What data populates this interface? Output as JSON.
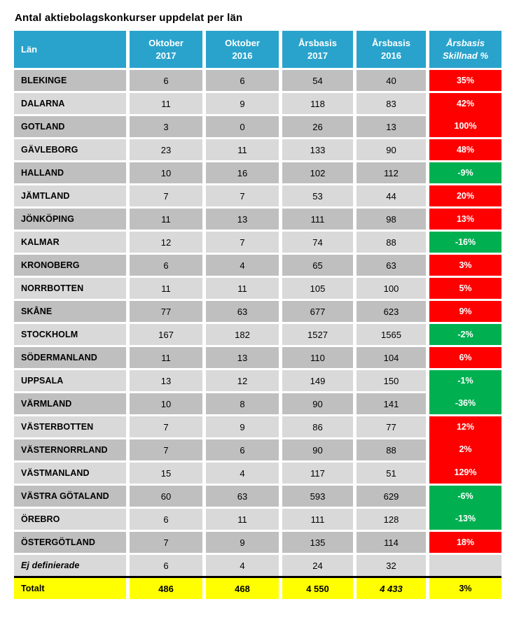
{
  "page_title": "Antal aktiebolagskonkurser uppdelat per län",
  "colors": {
    "header_bg": "#29A3CC",
    "row_dark": "#BFBFBF",
    "row_light": "#D9D9D9",
    "increase_red": "#FF0000",
    "decrease_green": "#00B050",
    "total_row_yellow": "#FFFF00",
    "divider_black": "#000000"
  },
  "table": {
    "header": [
      {
        "line1": "Län",
        "line2": ""
      },
      {
        "line1": "Oktober",
        "line2": "2017"
      },
      {
        "line1": "Oktober",
        "line2": "2016"
      },
      {
        "line1": "Årsbasis",
        "line2": "2017"
      },
      {
        "line1": "Årsbasis",
        "line2": "2016"
      },
      {
        "line1": "Årsbasis",
        "line2": "Skillnad %"
      }
    ],
    "rows": [
      {
        "name": "BLEKINGE",
        "values": [
          "6",
          "6",
          "54",
          "40"
        ],
        "pct": "35%",
        "pct_color": "red",
        "shade": "dark",
        "name_italic": false,
        "merge_pct_above": false
      },
      {
        "name": "DALARNA",
        "values": [
          "11",
          "9",
          "118",
          "83"
        ],
        "pct": "42%",
        "pct_color": "red",
        "shade": "light",
        "name_italic": false,
        "merge_pct_above": false
      },
      {
        "name": "GOTLAND",
        "values": [
          "3",
          "0",
          "26",
          "13"
        ],
        "pct": "100%",
        "pct_color": "red",
        "shade": "dark",
        "name_italic": false,
        "merge_pct_above": true
      },
      {
        "name": "GÄVLEBORG",
        "values": [
          "23",
          "11",
          "133",
          "90"
        ],
        "pct": "48%",
        "pct_color": "red",
        "shade": "light",
        "name_italic": false,
        "merge_pct_above": false
      },
      {
        "name": "HALLAND",
        "values": [
          "10",
          "16",
          "102",
          "112"
        ],
        "pct": "-9%",
        "pct_color": "green",
        "shade": "dark",
        "name_italic": false,
        "merge_pct_above": false
      },
      {
        "name": "JÄMTLAND",
        "values": [
          "7",
          "7",
          "53",
          "44"
        ],
        "pct": "20%",
        "pct_color": "red",
        "shade": "light",
        "name_italic": false,
        "merge_pct_above": false
      },
      {
        "name": "JÖNKÖPING",
        "values": [
          "11",
          "13",
          "111",
          "98"
        ],
        "pct": "13%",
        "pct_color": "red",
        "shade": "dark",
        "name_italic": false,
        "merge_pct_above": false
      },
      {
        "name": "KALMAR",
        "values": [
          "12",
          "7",
          "74",
          "88"
        ],
        "pct": "-16%",
        "pct_color": "green",
        "shade": "light",
        "name_italic": false,
        "merge_pct_above": false
      },
      {
        "name": "KRONOBERG",
        "values": [
          "6",
          "4",
          "65",
          "63"
        ],
        "pct": "3%",
        "pct_color": "red",
        "shade": "dark",
        "name_italic": false,
        "merge_pct_above": false
      },
      {
        "name": "NORRBOTTEN",
        "values": [
          "11",
          "11",
          "105",
          "100"
        ],
        "pct": "5%",
        "pct_color": "red",
        "shade": "light",
        "name_italic": false,
        "merge_pct_above": false
      },
      {
        "name": "SKÅNE",
        "values": [
          "77",
          "63",
          "677",
          "623"
        ],
        "pct": "9%",
        "pct_color": "red",
        "shade": "dark",
        "name_italic": false,
        "merge_pct_above": false
      },
      {
        "name": "STOCKHOLM",
        "values": [
          "167",
          "182",
          "1527",
          "1565"
        ],
        "pct": "-2%",
        "pct_color": "green",
        "shade": "light",
        "name_italic": false,
        "merge_pct_above": false
      },
      {
        "name": "SÖDERMANLAND",
        "values": [
          "11",
          "13",
          "110",
          "104"
        ],
        "pct": "6%",
        "pct_color": "red",
        "shade": "dark",
        "name_italic": false,
        "merge_pct_above": false
      },
      {
        "name": "UPPSALA",
        "values": [
          "13",
          "12",
          "149",
          "150"
        ],
        "pct": "-1%",
        "pct_color": "green",
        "shade": "light",
        "name_italic": false,
        "merge_pct_above": false
      },
      {
        "name": "VÄRMLAND",
        "values": [
          "10",
          "8",
          "90",
          "141"
        ],
        "pct": "-36%",
        "pct_color": "green",
        "shade": "dark",
        "name_italic": false,
        "merge_pct_above": true
      },
      {
        "name": "VÄSTERBOTTEN",
        "values": [
          "7",
          "9",
          "86",
          "77"
        ],
        "pct": "12%",
        "pct_color": "red",
        "shade": "light",
        "name_italic": false,
        "merge_pct_above": false
      },
      {
        "name": "VÄSTERNORRLAND",
        "values": [
          "7",
          "6",
          "90",
          "88"
        ],
        "pct": "2%",
        "pct_color": "red",
        "shade": "dark",
        "name_italic": false,
        "merge_pct_above": true
      },
      {
        "name": "VÄSTMANLAND",
        "values": [
          "15",
          "4",
          "117",
          "51"
        ],
        "pct": "129%",
        "pct_color": "red",
        "shade": "light",
        "name_italic": false,
        "merge_pct_above": true
      },
      {
        "name": "VÄSTRA GÖTALAND",
        "values": [
          "60",
          "63",
          "593",
          "629"
        ],
        "pct": "-6%",
        "pct_color": "green",
        "shade": "dark",
        "name_italic": false,
        "merge_pct_above": false
      },
      {
        "name": "ÖREBRO",
        "values": [
          "6",
          "11",
          "111",
          "128"
        ],
        "pct": "-13%",
        "pct_color": "green",
        "shade": "light",
        "name_italic": false,
        "merge_pct_above": true
      },
      {
        "name": "ÖSTERGÖTLAND",
        "values": [
          "7",
          "9",
          "135",
          "114"
        ],
        "pct": "18%",
        "pct_color": "red",
        "shade": "dark",
        "name_italic": false,
        "merge_pct_above": false
      },
      {
        "name": "Ej definierade",
        "values": [
          "6",
          "4",
          "24",
          "32"
        ],
        "pct": "",
        "pct_color": "none",
        "shade": "light",
        "name_italic": true,
        "merge_pct_above": false
      }
    ],
    "total": {
      "name": "Totalt",
      "values": [
        "486",
        "468",
        "4 550",
        "4 433"
      ],
      "pct": "3%"
    }
  }
}
